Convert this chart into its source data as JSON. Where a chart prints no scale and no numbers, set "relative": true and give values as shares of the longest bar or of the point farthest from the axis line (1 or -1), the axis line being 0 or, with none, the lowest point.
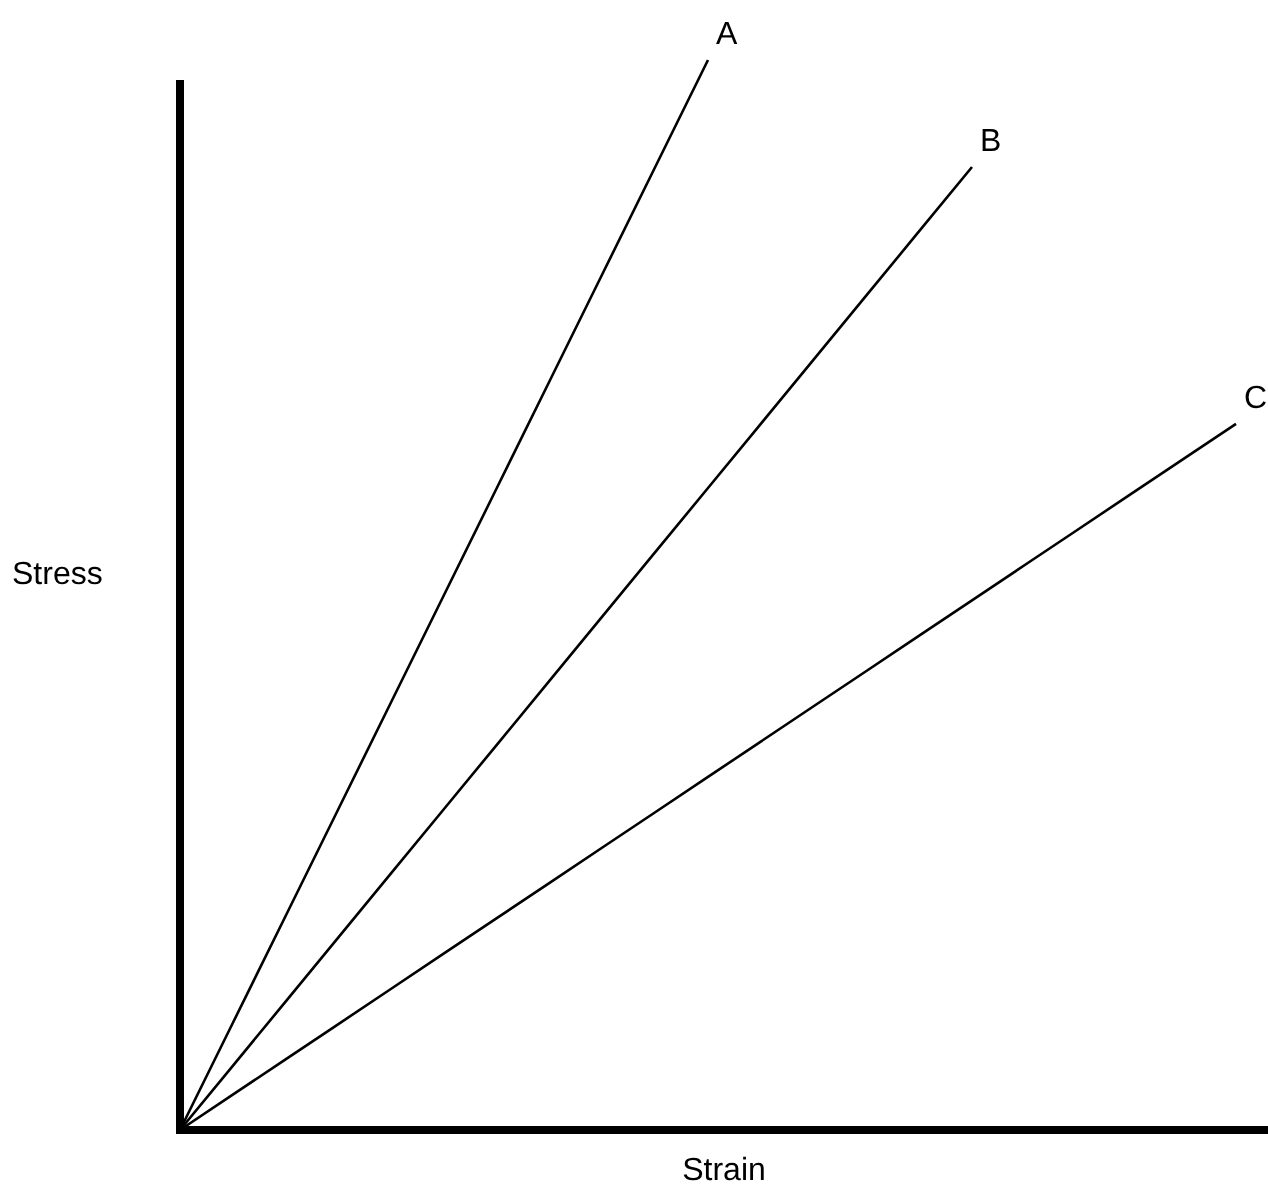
{
  "chart_data": {
    "type": "line",
    "relative": true,
    "xlabel": "Strain",
    "ylabel": "Stress",
    "legend": false,
    "marker": "none",
    "line_style": "solid",
    "categories": [
      null,
      null,
      null,
      null,
      null,
      null,
      null,
      null,
      null,
      null,
      null,
      null,
      null,
      null,
      null,
      null,
      null,
      null,
      null,
      null,
      null
    ],
    "series": [
      {
        "name": "A",
        "color": "#000000",
        "values": [
          0,
          0.1,
          0.2,
          0.3,
          0.4,
          0.5,
          0.6,
          0.7,
          0.8,
          0.9,
          1,
          null,
          null,
          null,
          null,
          null,
          null,
          null,
          null,
          null,
          null
        ]
      },
      {
        "name": "B",
        "color": "#000000",
        "values": [
          0,
          0.06,
          0.12,
          0.18,
          0.24,
          0.3,
          0.36,
          0.42,
          0.48,
          0.54,
          0.6,
          0.66,
          0.72,
          0.78,
          0.84,
          0.9,
          null,
          null,
          null,
          null,
          null
        ]
      },
      {
        "name": "C",
        "color": "#000000",
        "values": [
          0,
          0.033,
          0.066,
          0.099,
          0.132,
          0.165,
          0.198,
          0.231,
          0.264,
          0.297,
          0.33,
          0.363,
          0.396,
          0.429,
          0.462,
          0.495,
          0.528,
          0.561,
          0.594,
          0.627,
          0.66
        ]
      }
    ]
  }
}
